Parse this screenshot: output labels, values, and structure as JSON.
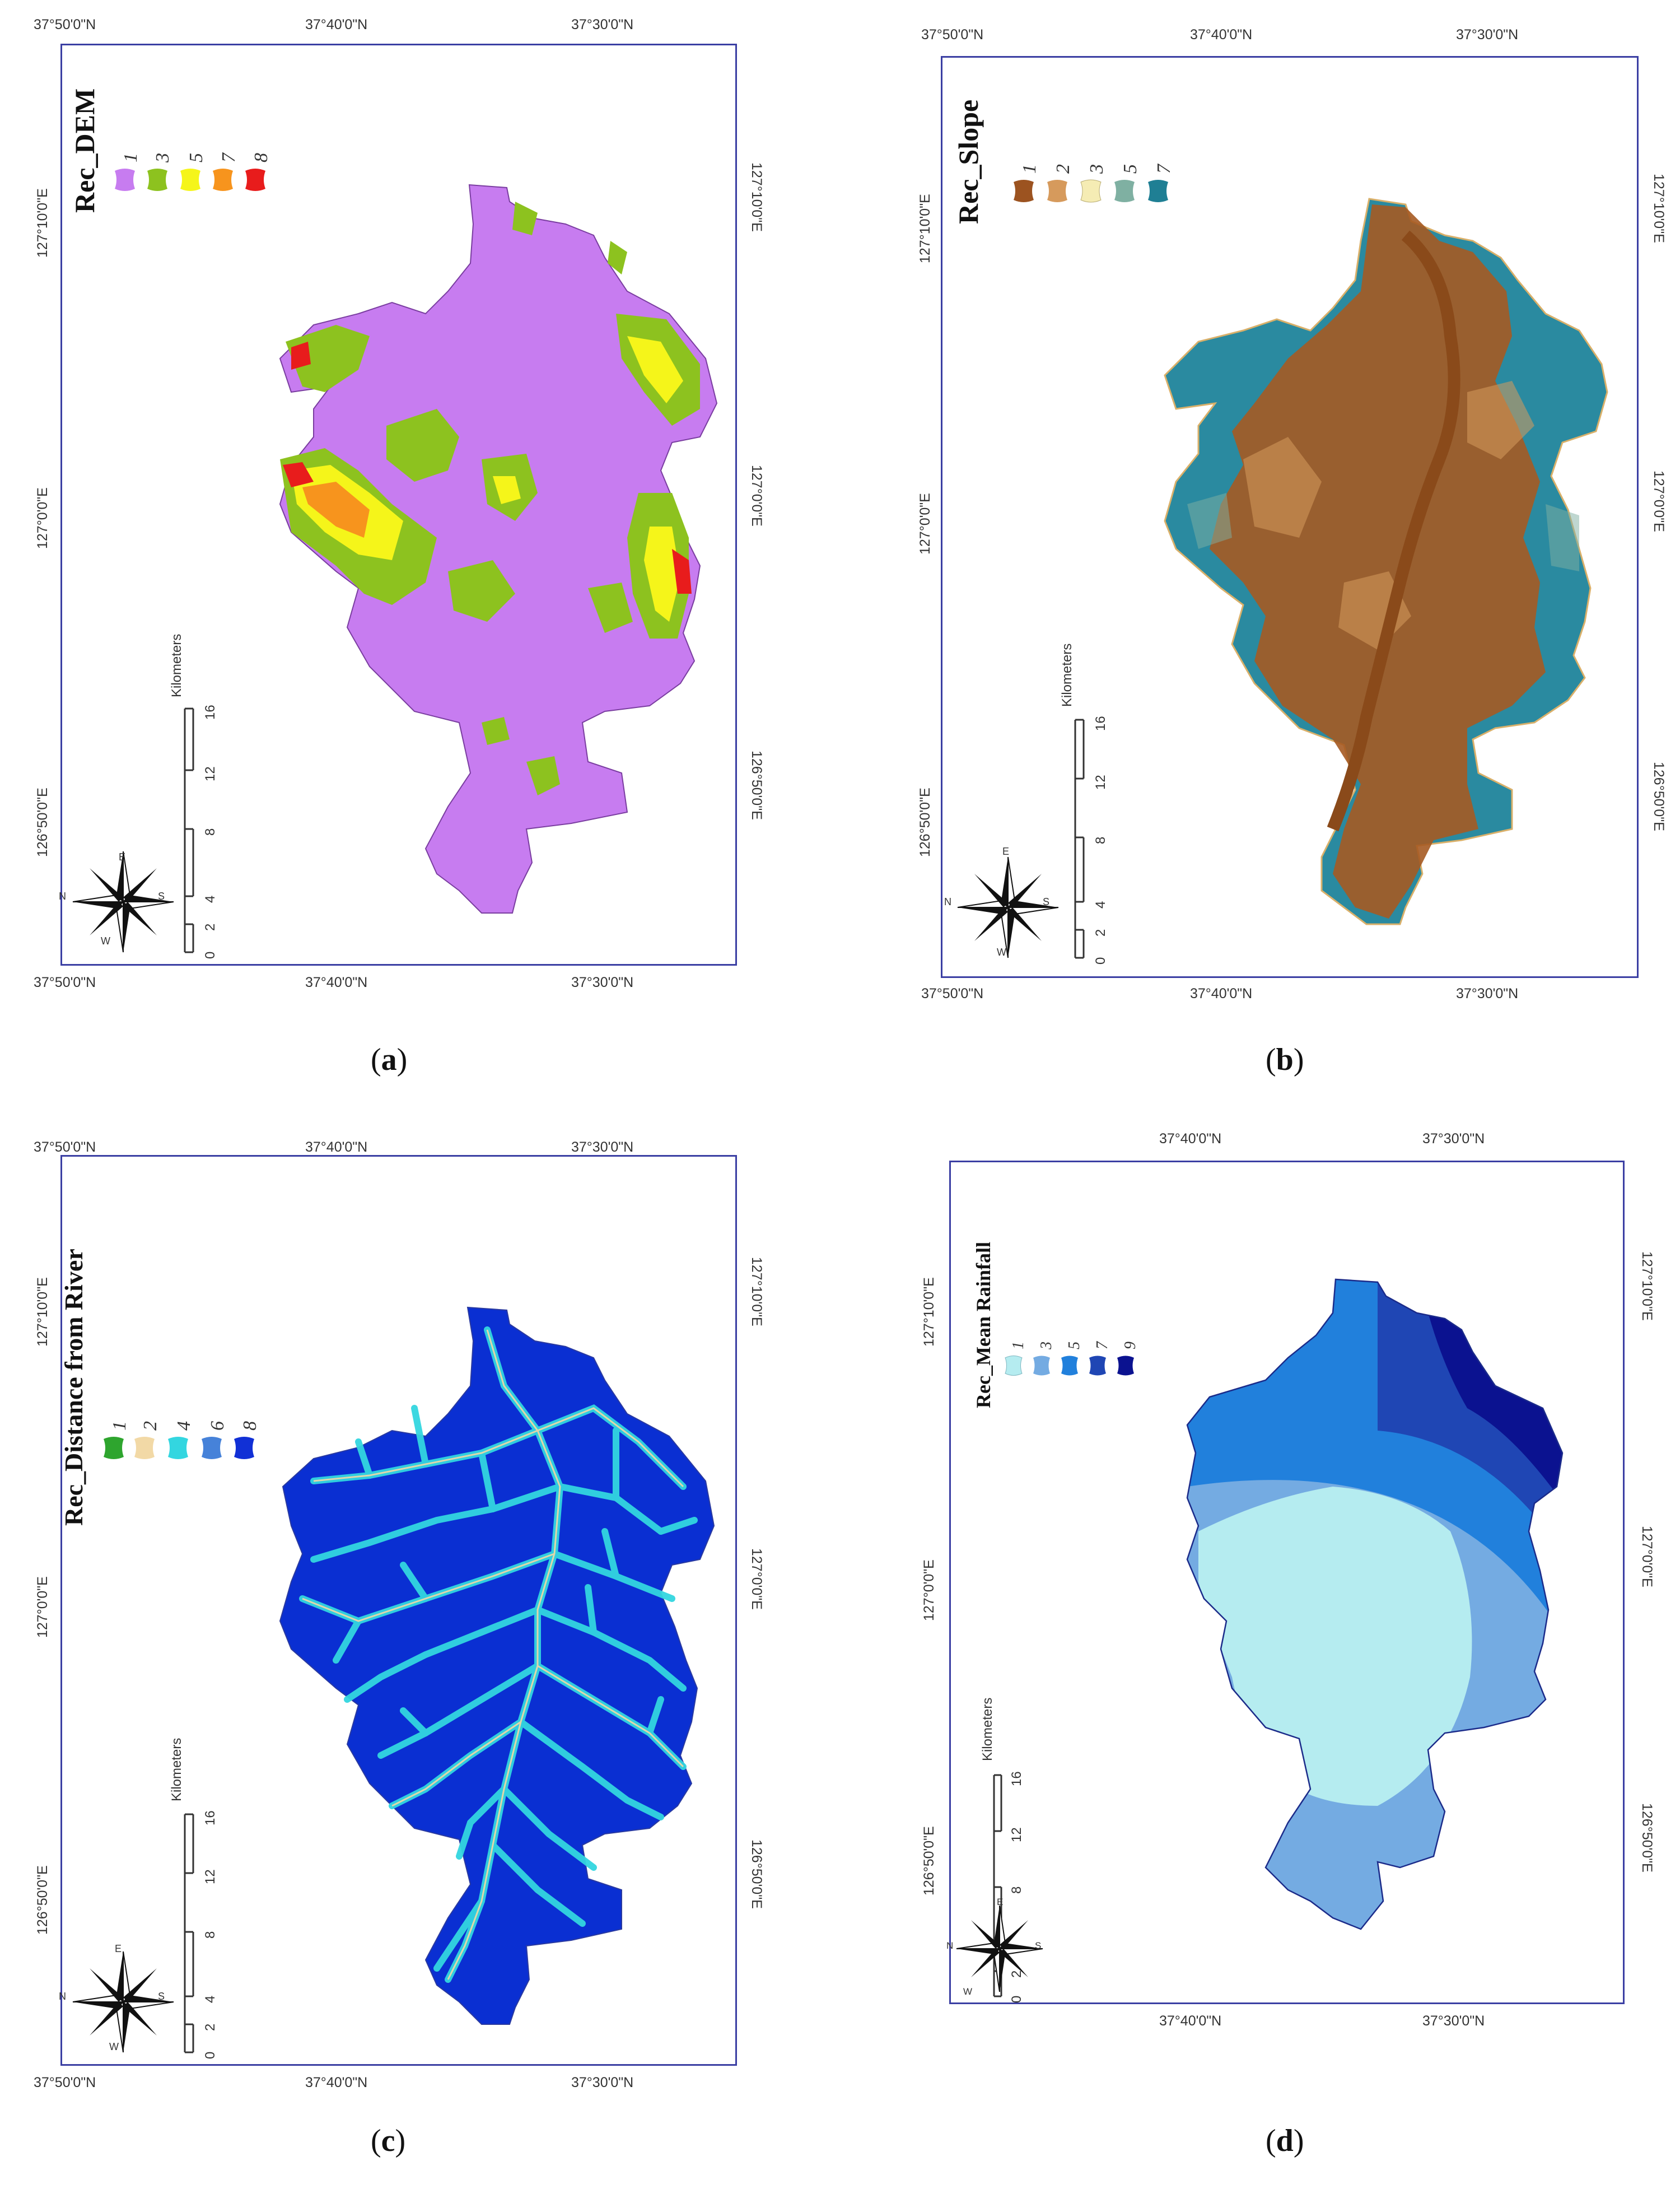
{
  "panels": [
    {
      "id": "a",
      "caption": "a",
      "title": "Rec_DEM",
      "legend": [
        {
          "label": "1",
          "color": "#c77cf0"
        },
        {
          "label": "3",
          "color": "#8dc21f"
        },
        {
          "label": "5",
          "color": "#f5f51a"
        },
        {
          "label": "7",
          "color": "#f7941d"
        },
        {
          "label": "8",
          "color": "#e81c1c"
        }
      ],
      "coords": {
        "top": [
          "37°50'0\"N",
          "37°40'0\"N",
          "37°30'0\"N"
        ],
        "bottom": [
          "37°50'0\"N",
          "37°40'0\"N",
          "37°30'0\"N"
        ],
        "left": [
          "127°10'0\"E",
          "127°0'0\"E",
          "126°50'0\"E"
        ],
        "right": [
          "127°10'0\"E",
          "127°0'0\"E",
          "126°50'0\"E"
        ]
      }
    },
    {
      "id": "b",
      "caption": "b",
      "title": "Rec_Slope",
      "legend": [
        {
          "label": "1",
          "color": "#9c5320"
        },
        {
          "label": "2",
          "color": "#d69a5c"
        },
        {
          "label": "3",
          "color": "#f5ecb4"
        },
        {
          "label": "5",
          "color": "#7fb0a2"
        },
        {
          "label": "7",
          "color": "#1f7f94"
        }
      ],
      "coords": {
        "top": [
          "37°50'0\"N",
          "37°40'0\"N",
          "37°30'0\"N"
        ],
        "bottom": [
          "37°50'0\"N",
          "37°40'0\"N",
          "37°30'0\"N"
        ],
        "left": [
          "127°10'0\"E",
          "127°0'0\"E",
          "126°50'0\"E"
        ],
        "right": [
          "127°10'0\"E",
          "127°0'0\"E",
          "126°50'0\"E"
        ]
      }
    },
    {
      "id": "c",
      "caption": "c",
      "title": "Rec_Distance from River",
      "legend": [
        {
          "label": "1",
          "color": "#2ea52e"
        },
        {
          "label": "2",
          "color": "#f2d9a6"
        },
        {
          "label": "4",
          "color": "#33d6e0"
        },
        {
          "label": "6",
          "color": "#4682d9"
        },
        {
          "label": "8",
          "color": "#1130d6"
        }
      ],
      "coords": {
        "top": [
          "37°50'0\"N",
          "37°40'0\"N",
          "37°30'0\"N"
        ],
        "bottom": [
          "37°50'0\"N",
          "37°40'0\"N",
          "37°30'0\"N"
        ],
        "left": [
          "127°10'0\"E",
          "127°0'0\"E",
          "126°50'0\"E"
        ],
        "right": [
          "127°10'0\"E",
          "127°0'0\"E",
          "126°50'0\"E"
        ]
      }
    },
    {
      "id": "d",
      "caption": "d",
      "title": "Rec_Mean Rainfall",
      "legend": [
        {
          "label": "1",
          "color": "#b5ecf0"
        },
        {
          "label": "3",
          "color": "#74abe2"
        },
        {
          "label": "5",
          "color": "#2180dc"
        },
        {
          "label": "7",
          "color": "#1f46b4"
        },
        {
          "label": "9",
          "color": "#0b1290"
        }
      ],
      "coords": {
        "top": [
          "37°40'0\"N",
          "37°30'0\"N"
        ],
        "bottom": [
          "37°40'0\"N",
          "37°30'0\"N"
        ],
        "left": [
          "127°10'0\"E",
          "127°0'0\"E",
          "126°50'0\"E"
        ],
        "right": [
          "127°10'0\"E",
          "127°0'0\"E",
          "126°50'0\"E"
        ]
      }
    }
  ],
  "scale_bar": {
    "unit": "Kilometers",
    "ticks": [
      "0",
      "2",
      "4",
      "8",
      "12",
      "16"
    ]
  },
  "north_arrow": {
    "n": "N",
    "e": "E",
    "s": "S",
    "w": "W"
  }
}
